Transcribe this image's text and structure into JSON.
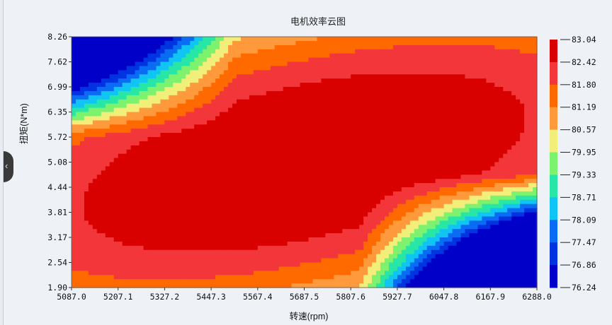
{
  "chart_data": {
    "type": "heatmap",
    "title": "电机效率云图",
    "xlabel": "转速(rpm)",
    "ylabel": "扭矩(N*m)",
    "x_ticks": [
      "5087.0",
      "5207.1",
      "5327.2",
      "5447.3",
      "5567.4",
      "5687.5",
      "5807.6",
      "5927.7",
      "6047.8",
      "6167.9",
      "6288.0"
    ],
    "y_ticks": [
      "1.90",
      "2.54",
      "3.17",
      "3.81",
      "4.44",
      "5.08",
      "5.72",
      "6.35",
      "6.99",
      "7.62",
      "8.26"
    ],
    "xlim": [
      5087.0,
      6288.0
    ],
    "ylim": [
      1.9,
      8.26
    ],
    "colorbar": {
      "levels": [
        "83.04",
        "82.42",
        "81.80",
        "81.19",
        "80.57",
        "79.95",
        "79.33",
        "78.71",
        "78.09",
        "77.47",
        "76.86",
        "76.24"
      ],
      "colors": [
        "#d90000",
        "#f2363a",
        "#ff6a00",
        "#ff9a3c",
        "#f2ee7a",
        "#7cf26e",
        "#28e6a6",
        "#10c4f4",
        "#0a6cf2",
        "#0034e0",
        "#0000c8"
      ]
    },
    "efficiency_peak": 83.04,
    "efficiency_min": 76.24
  }
}
